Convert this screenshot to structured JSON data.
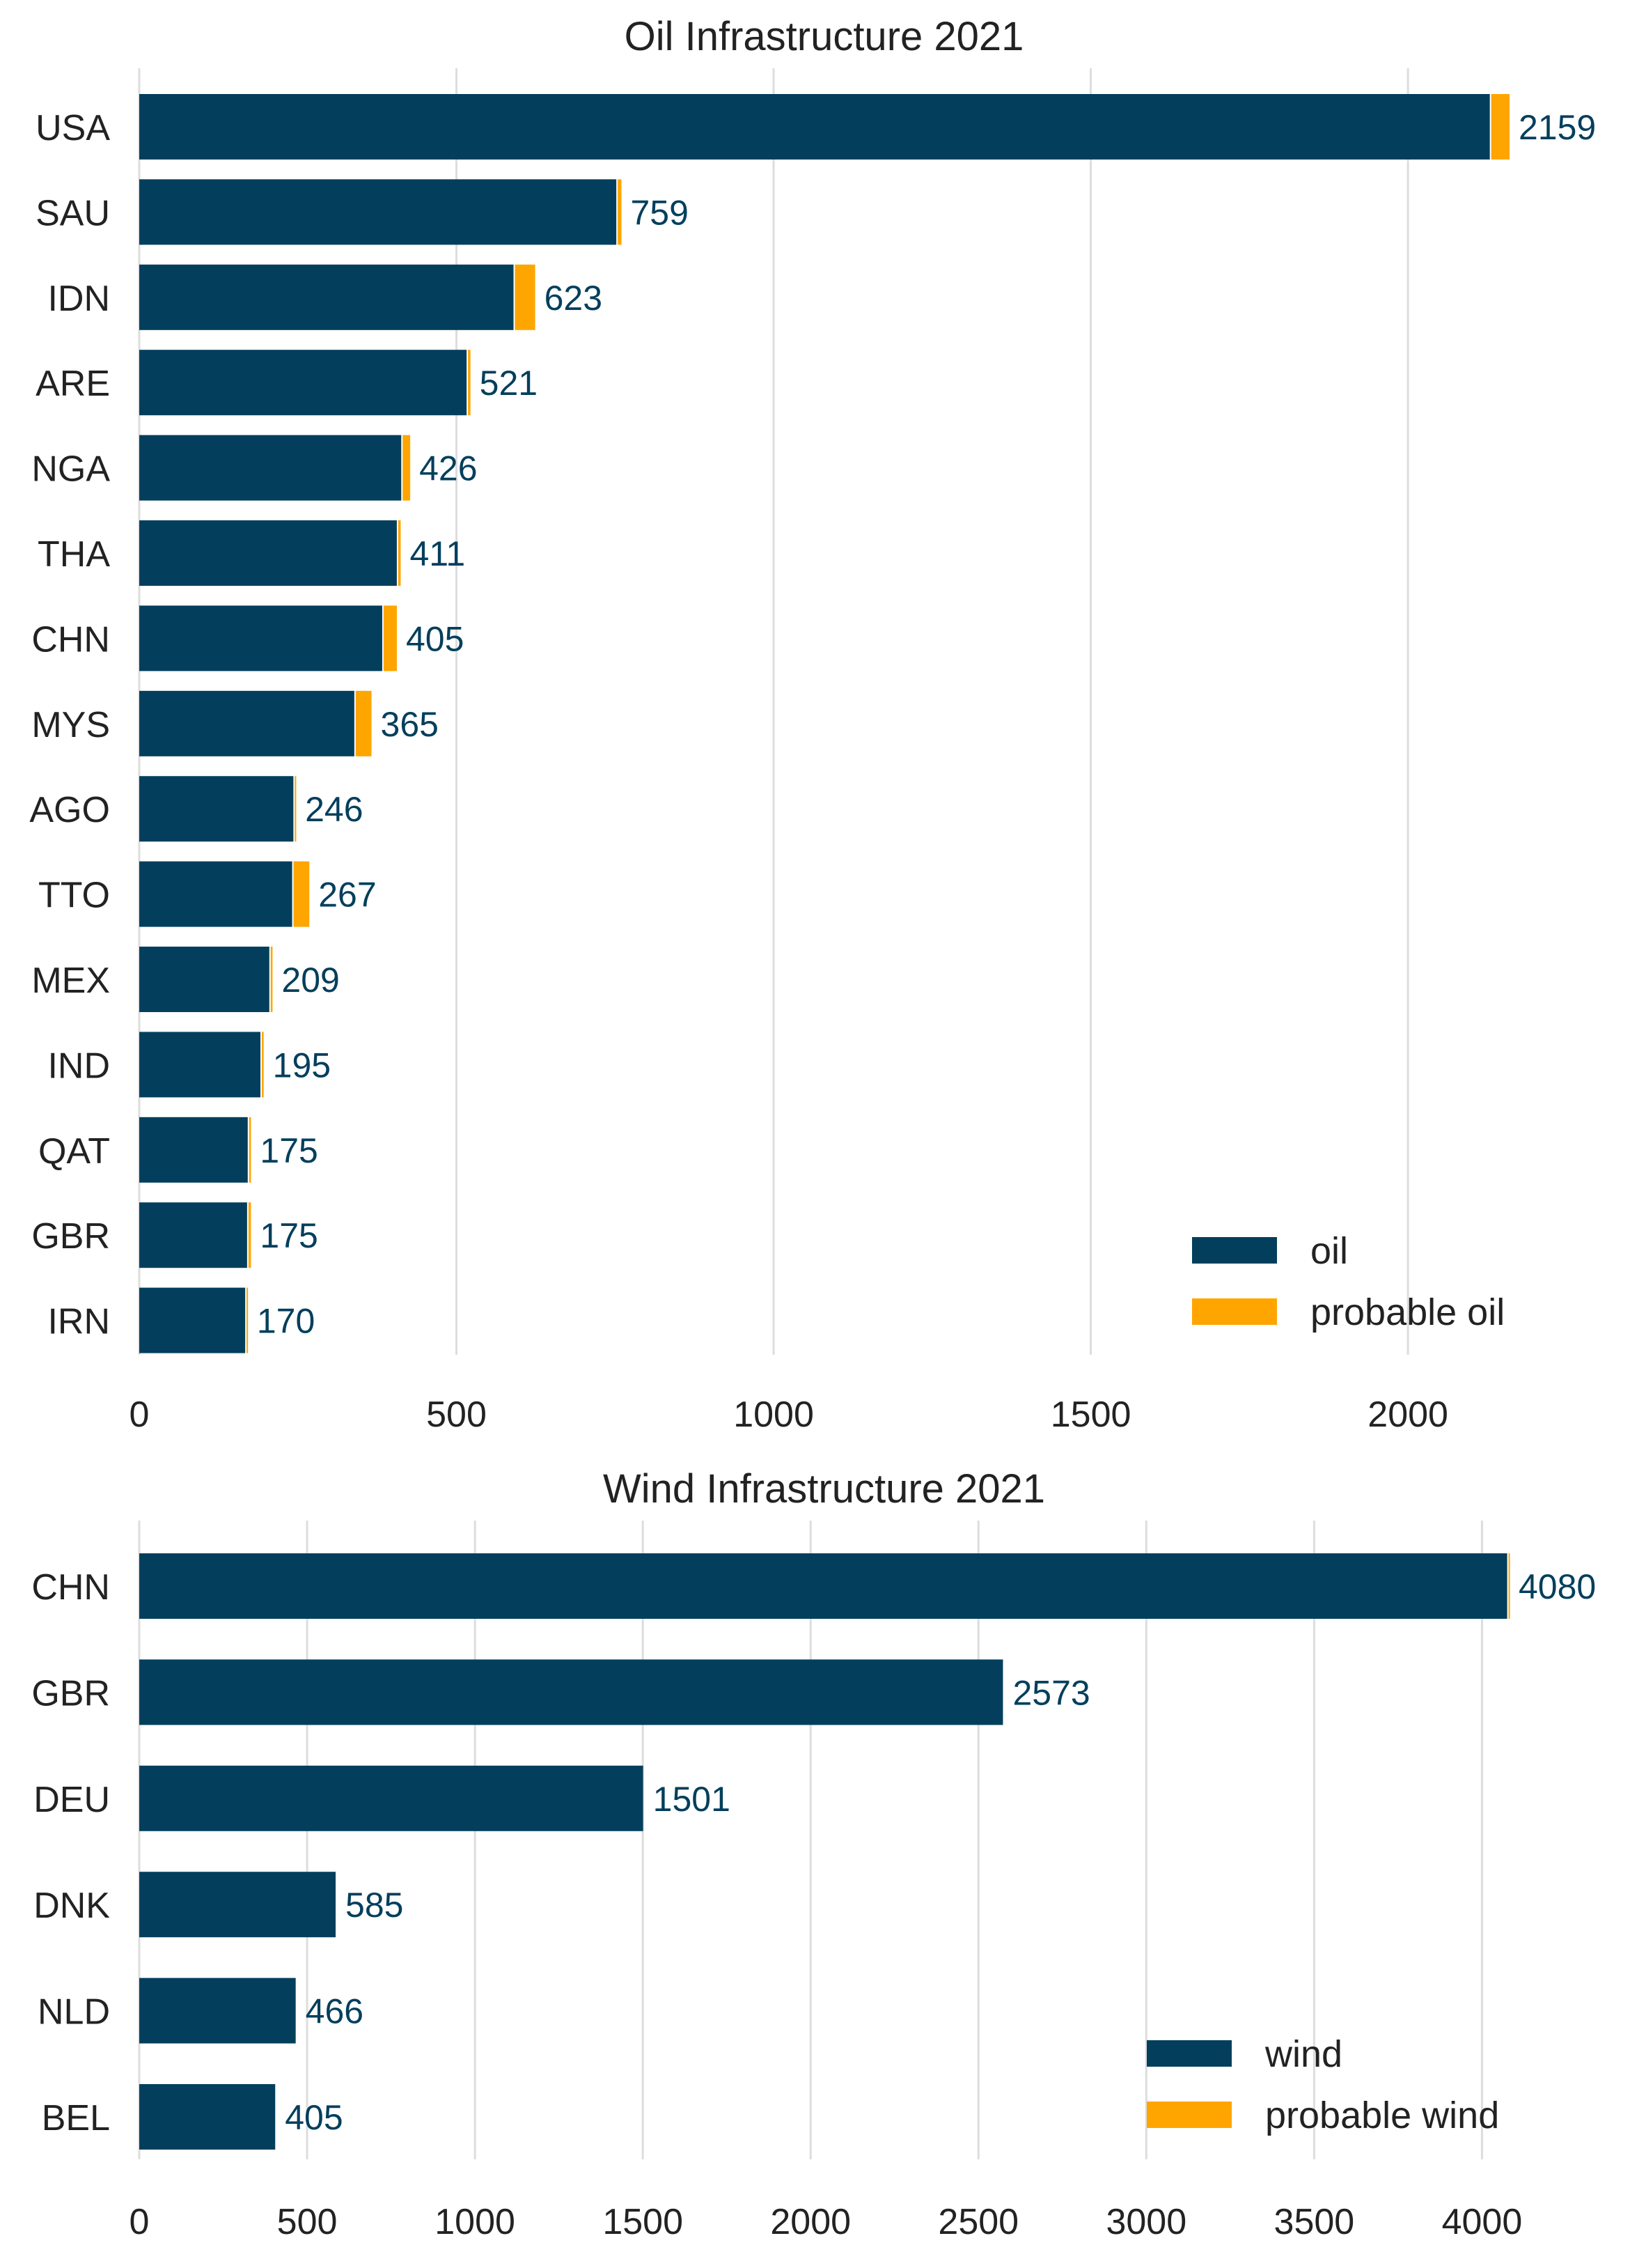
{
  "colors": {
    "primary": "#033f5c",
    "probable": "#ffa500",
    "grid": "#dddddd",
    "text": "#222222"
  },
  "chart_data": [
    {
      "type": "bar",
      "orientation": "horizontal",
      "stacked": true,
      "title": "Oil Infrastructure 2021",
      "categories": [
        "USA",
        "SAU",
        "IDN",
        "ARE",
        "NGA",
        "THA",
        "CHN",
        "MYS",
        "AGO",
        "TTO",
        "MEX",
        "IND",
        "QAT",
        "GBR",
        "IRN"
      ],
      "series": [
        {
          "name": "oil",
          "color": "#033f5c",
          "values": [
            2129,
            752,
            590,
            516,
            413,
            406,
            383,
            339,
            243,
            241,
            205,
            191,
            171,
            170,
            167
          ]
        },
        {
          "name": "probable oil",
          "color": "#ffa500",
          "values": [
            30,
            7,
            33,
            5,
            13,
            5,
            22,
            26,
            3,
            26,
            4,
            4,
            4,
            5,
            3
          ]
        }
      ],
      "data_labels": [
        "2159",
        "759",
        "623",
        "521",
        "426",
        "411",
        "405",
        "365",
        "246",
        "267",
        "209",
        "195",
        "175",
        "175",
        "170"
      ],
      "xticks": [
        "0",
        "500",
        "1000",
        "1500",
        "2000"
      ],
      "xtick_values": [
        0,
        500,
        1000,
        1500,
        2000
      ],
      "xlim": [
        0,
        2159
      ],
      "grid": true,
      "legend": {
        "position": "bottom-right",
        "entries": [
          "oil",
          "probable oil"
        ]
      }
    },
    {
      "type": "bar",
      "orientation": "horizontal",
      "stacked": true,
      "title": "Wind Infrastructure 2021",
      "categories": [
        "CHN",
        "GBR",
        "DEU",
        "DNK",
        "NLD",
        "BEL"
      ],
      "series": [
        {
          "name": "wind",
          "color": "#033f5c",
          "values": [
            4075,
            2573,
            1501,
            585,
            466,
            405
          ]
        },
        {
          "name": "probable wind",
          "color": "#ffa500",
          "values": [
            5,
            0,
            0,
            0,
            0,
            0
          ]
        }
      ],
      "data_labels": [
        "4080",
        "2573",
        "1501",
        "585",
        "466",
        "405"
      ],
      "xticks": [
        "0",
        "500",
        "1000",
        "1500",
        "2000",
        "2500",
        "3000",
        "3500",
        "4000"
      ],
      "xtick_values": [
        0,
        500,
        1000,
        1500,
        2000,
        2500,
        3000,
        3500,
        4000
      ],
      "xlim": [
        0,
        4080
      ],
      "grid": true,
      "legend": {
        "position": "bottom-right",
        "entries": [
          "wind",
          "probable wind"
        ]
      }
    }
  ]
}
